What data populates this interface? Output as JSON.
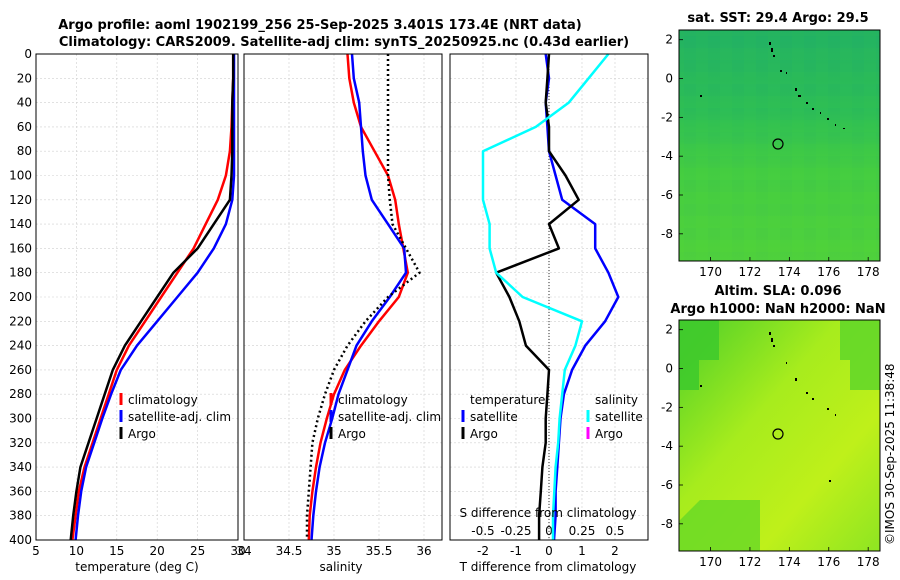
{
  "title_line1": "Argo profile: aoml 1902199_256 25-Sep-2025 3.401S 173.4E (NRT data)",
  "title_line2": "Climatology: CARS2009. Satellite-adj clim: synTS_20250925.nc (0.43d earlier)",
  "map1_title": "sat. SST: 29.4 Argo: 29.5",
  "map2_title1": "Altim. SLA: 0.096",
  "map2_title2": "Argo h1000: NaN h2000: NaN",
  "side_label": "©IMOS 30-Sep-2025 11:38:48",
  "colors": {
    "red": "#ff0000",
    "blue": "#0000ff",
    "black": "#000000",
    "cyan": "#00ffff",
    "magenta": "#ff00ff"
  },
  "chart_data": [
    {
      "type": "line",
      "name": "temperature",
      "xlabel": "temperature (deg C)",
      "xlim": [
        5,
        30
      ],
      "xticks": [
        "5",
        "10",
        "15",
        "20",
        "25",
        "30"
      ],
      "ylim": [
        0,
        400
      ],
      "yticks": [
        "0",
        "20",
        "40",
        "60",
        "80",
        "100",
        "120",
        "140",
        "160",
        "180",
        "200",
        "220",
        "240",
        "260",
        "280",
        "300",
        "320",
        "340",
        "360",
        "380",
        "400"
      ],
      "legend": [
        "climatology",
        "satellite-adj. clim",
        "Argo"
      ],
      "series": [
        {
          "name": "climatology",
          "color": "red",
          "x": [
            29.4,
            29.4,
            29.3,
            29.2,
            29.0,
            28.5,
            27.5,
            26.0,
            24.5,
            22.5,
            20.5,
            18.5,
            16.5,
            15.0,
            14.0,
            13.0,
            12.0,
            11.0,
            10.3,
            9.9,
            9.5
          ],
          "y": [
            0,
            20,
            40,
            60,
            80,
            100,
            120,
            140,
            160,
            180,
            200,
            220,
            240,
            260,
            280,
            300,
            320,
            340,
            360,
            380,
            400
          ]
        },
        {
          "name": "satellite-adj. clim",
          "color": "blue",
          "x": [
            29.5,
            29.5,
            29.5,
            29.5,
            29.5,
            29.5,
            29.3,
            28.5,
            27.0,
            25.0,
            22.5,
            20.0,
            17.5,
            15.5,
            14.3,
            13.2,
            12.2,
            11.2,
            10.6,
            10.2,
            9.9
          ],
          "y": [
            0,
            20,
            40,
            60,
            80,
            100,
            120,
            140,
            160,
            180,
            200,
            220,
            240,
            260,
            280,
            300,
            320,
            340,
            360,
            380,
            400
          ]
        },
        {
          "name": "Argo",
          "color": "black",
          "x": [
            29.4,
            29.4,
            29.3,
            29.3,
            29.3,
            29.2,
            29.0,
            27.0,
            25.0,
            22.0,
            20.0,
            18.0,
            16.0,
            14.5,
            13.5,
            12.5,
            11.5,
            10.5,
            10.0,
            9.6,
            9.3
          ],
          "y": [
            0,
            20,
            40,
            60,
            80,
            100,
            120,
            140,
            160,
            180,
            200,
            220,
            240,
            260,
            280,
            300,
            320,
            340,
            360,
            380,
            400
          ]
        }
      ]
    },
    {
      "type": "line",
      "name": "salinity",
      "xlabel": "salinity",
      "xlim": [
        34,
        36.2
      ],
      "xticks": [
        "34",
        "34.5",
        "35",
        "35.5",
        "36"
      ],
      "ylim": [
        0,
        400
      ],
      "legend": [
        "climatology",
        "satellite-adj. clim",
        "Argo"
      ],
      "series": [
        {
          "name": "climatology",
          "color": "red",
          "x": [
            35.15,
            35.17,
            35.22,
            35.3,
            35.45,
            35.6,
            35.68,
            35.72,
            35.77,
            35.82,
            35.72,
            35.5,
            35.3,
            35.12,
            35.0,
            34.92,
            34.85,
            34.8,
            34.76,
            34.73,
            34.72
          ],
          "y": [
            0,
            20,
            40,
            60,
            80,
            100,
            120,
            140,
            160,
            180,
            200,
            220,
            240,
            260,
            280,
            300,
            320,
            340,
            360,
            380,
            400
          ]
        },
        {
          "name": "satellite-adj. clim",
          "color": "blue",
          "x": [
            35.2,
            35.22,
            35.28,
            35.3,
            35.32,
            35.35,
            35.42,
            35.6,
            35.78,
            35.8,
            35.62,
            35.42,
            35.25,
            35.15,
            35.05,
            34.98,
            34.9,
            34.84,
            34.8,
            34.77,
            34.75
          ],
          "y": [
            0,
            20,
            40,
            60,
            80,
            100,
            120,
            140,
            160,
            180,
            200,
            220,
            240,
            260,
            280,
            300,
            320,
            340,
            360,
            380,
            400
          ]
        },
        {
          "name": "Argo",
          "color": "black",
          "x": [
            35.6,
            35.6,
            35.6,
            35.6,
            35.6,
            35.6,
            35.62,
            35.65,
            35.8,
            35.95,
            35.6,
            35.35,
            35.15,
            35.0,
            34.9,
            34.82,
            34.76,
            34.74,
            34.72,
            34.7,
            34.7
          ],
          "y": [
            0,
            20,
            40,
            60,
            80,
            100,
            120,
            140,
            160,
            180,
            200,
            220,
            240,
            260,
            280,
            300,
            320,
            340,
            360,
            380,
            400
          ]
        }
      ]
    },
    {
      "type": "line",
      "name": "difference",
      "xlabel": "T difference from climatology",
      "xlabel2": "S difference from climatology",
      "xlim": [
        -3,
        3
      ],
      "xticks": [
        "-2",
        "-1",
        "0",
        "1",
        "2"
      ],
      "sxlim": [
        -0.75,
        0.75
      ],
      "sxticks": [
        "-0.5",
        "-0.25",
        "0",
        "0.25",
        "0.5"
      ],
      "ylim": [
        0,
        400
      ],
      "legend_left_title": "temperature",
      "legend_right_title": "salinity",
      "legend_left": [
        "satellite",
        "Argo"
      ],
      "legend_right": [
        "satellite",
        "Argo"
      ],
      "series": [
        {
          "name": "T satellite",
          "color": "blue",
          "x": [
            -0.1,
            0.0,
            -0.1,
            -0.05,
            0.0,
            0.2,
            0.4,
            1.4,
            1.4,
            1.8,
            2.1,
            1.7,
            1.1,
            0.7,
            0.45,
            0.35,
            0.3,
            0.25,
            0.2,
            0.2,
            0.15
          ],
          "y": [
            0,
            20,
            40,
            60,
            80,
            100,
            120,
            140,
            160,
            180,
            200,
            220,
            240,
            260,
            280,
            300,
            320,
            340,
            360,
            380,
            400
          ]
        },
        {
          "name": "T Argo",
          "color": "black",
          "x": [
            0.0,
            -0.05,
            -0.1,
            0.0,
            0.0,
            0.5,
            0.9,
            0.0,
            0.3,
            -1.6,
            -1.2,
            -0.9,
            -0.7,
            0.0,
            -0.05,
            -0.1,
            -0.1,
            -0.2,
            -0.25,
            -0.3,
            -0.3
          ],
          "y": [
            0,
            20,
            40,
            60,
            80,
            100,
            120,
            140,
            160,
            180,
            200,
            220,
            240,
            260,
            280,
            300,
            320,
            340,
            360,
            380,
            400
          ]
        },
        {
          "name": "S satellite",
          "color": "cyan",
          "x": [
            0.45,
            0.3,
            0.15,
            -0.1,
            -0.5,
            -0.5,
            -0.5,
            -0.45,
            -0.45,
            -0.4,
            -0.2,
            0.25,
            0.2,
            0.12,
            0.1,
            0.08,
            0.07,
            0.05,
            0.04,
            0.03,
            0.03
          ],
          "y": [
            0,
            20,
            40,
            60,
            80,
            100,
            120,
            140,
            160,
            180,
            200,
            220,
            240,
            260,
            280,
            300,
            320,
            340,
            360,
            380,
            400
          ]
        }
      ]
    }
  ],
  "map1": {
    "xticks": [
      "170",
      "172",
      "174",
      "176",
      "178"
    ],
    "yticks": [
      "2",
      "0",
      "-2",
      "-4",
      "-6",
      "-8"
    ]
  },
  "map2": {
    "xticks": [
      "170",
      "172",
      "174",
      "176",
      "178"
    ],
    "yticks": [
      "2",
      "0",
      "-2",
      "-4",
      "-6",
      "-8"
    ]
  }
}
